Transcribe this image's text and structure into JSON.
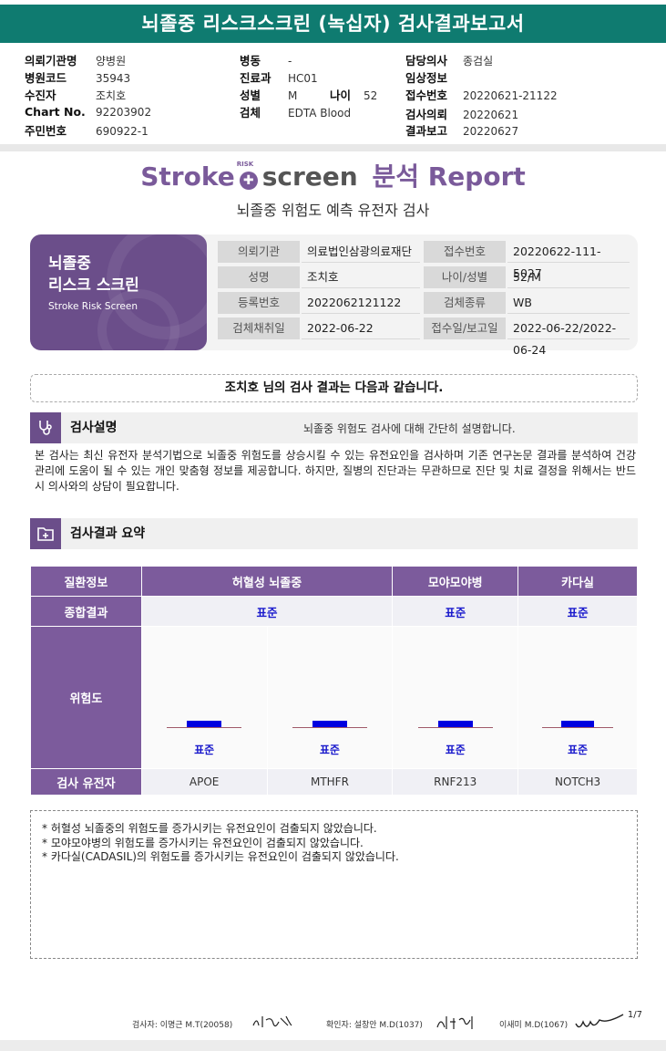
{
  "title": "뇌졸중 리스크스크린 (녹십자) 검사결과보고서",
  "header": {
    "col1": [
      {
        "label": "의뢰기관명",
        "value": "양병원"
      },
      {
        "label": "병원코드",
        "value": "35943"
      },
      {
        "label": "수진자",
        "value": "조치호"
      },
      {
        "label": "Chart No.",
        "value": "92203902"
      },
      {
        "label": "주민번호",
        "value": "690922-1"
      }
    ],
    "col2": [
      {
        "label": "병동",
        "value": "-"
      },
      {
        "label": "진료과",
        "value": "HC01"
      },
      {
        "label": "성별",
        "value": "M"
      },
      {
        "label": "검체",
        "value": "EDTA Blood"
      }
    ],
    "age": {
      "label": "나이",
      "value": "52"
    },
    "col3": [
      {
        "label": "담당의사",
        "value": "종검실"
      },
      {
        "label": "임상정보",
        "value": ""
      },
      {
        "label": "접수번호",
        "value": "20220621-21122"
      },
      {
        "label": "검사의뢰",
        "value": "20220621"
      },
      {
        "label": "결과보고",
        "value": "20220627"
      }
    ]
  },
  "brand": {
    "stroke": "Stroke",
    "risk": "RISK",
    "screen": "screen",
    "bunsuk": "분석",
    "report": "Report"
  },
  "subtitle": "뇌졸중 위험도 예측 유전자 검사",
  "card": {
    "title1": "뇌졸중",
    "title2": "리스크 스크린",
    "title_en": "Stroke Risk Screen",
    "rows": [
      {
        "k1": "의뢰기관",
        "v1": "의료법인삼광의료재단",
        "k2": "접수번호",
        "v2": "20220622-111-5027"
      },
      {
        "k1": "성명",
        "v1": "조치호",
        "k2": "나이/성별",
        "v2": "52/M"
      },
      {
        "k1": "등록번호",
        "v1": "2022062121122",
        "k2": "검체종류",
        "v2": "WB"
      },
      {
        "k1": "검체채취일",
        "v1": "2022-06-22",
        "k2": "접수일/보고일",
        "v2": "2022-06-22/2022-06-24"
      }
    ]
  },
  "result_intro": "조치호 님의 검사 결과는 다음과 같습니다.",
  "section1": {
    "title": "검사설명",
    "desc": "뇌졸중 위험도 검사에 대해 간단히 설명합니다.",
    "body": "본 검사는 최신 유전자 분석기법으로 뇌졸중 위험도를 상승시킬 수 있는 유전요인을 검사하며 기존 연구논문 결과를 분석하여 건강 관리에 도움이 될 수 있는 개인 맞춤형 정보를 제공합니다. 하지만, 질병의 진단과는 무관하므로 진단 및 치료 결정을 위해서는 반드시 의사와의 상담이 필요합니다."
  },
  "section2": {
    "title": "검사결과 요약"
  },
  "table": {
    "row_labels": {
      "disease": "질환정보",
      "overall": "종합결과",
      "risk": "위험도",
      "gene": "검사 유전자"
    },
    "diseases": [
      "허혈성 뇌졸중",
      "모야모야병",
      "카다실"
    ],
    "overall": [
      "표준",
      "표준",
      "표준"
    ],
    "genes": [
      {
        "gene": "APOE",
        "risk": "표준"
      },
      {
        "gene": "MTHFR",
        "risk": "표준"
      },
      {
        "gene": "RNF213",
        "risk": "표준"
      },
      {
        "gene": "NOTCH3",
        "risk": "표준"
      }
    ]
  },
  "notes": [
    "* 허혈성 뇌졸중의 위험도를 증가시키는 유전요인이 검출되지 않았습니다.",
    "* 모야모야병의 위험도를 증가시키는 유전요인이 검출되지 않았습니다.",
    "* 카다실(CADASIL)의 위험도를 증가시키는 유전요인이 검출되지 않았습니다."
  ],
  "footer": {
    "tester": "검사자: 이명근 M.T(20058)",
    "confirmer": "확인자: 설창안 M.D(1037)",
    "doctor": "이새미 M.D(1067)",
    "page": "1/7"
  },
  "colors": {
    "title_bg": "#0f7b70",
    "purple": "#7c5b9c",
    "risk_bar": "#0000e0"
  }
}
